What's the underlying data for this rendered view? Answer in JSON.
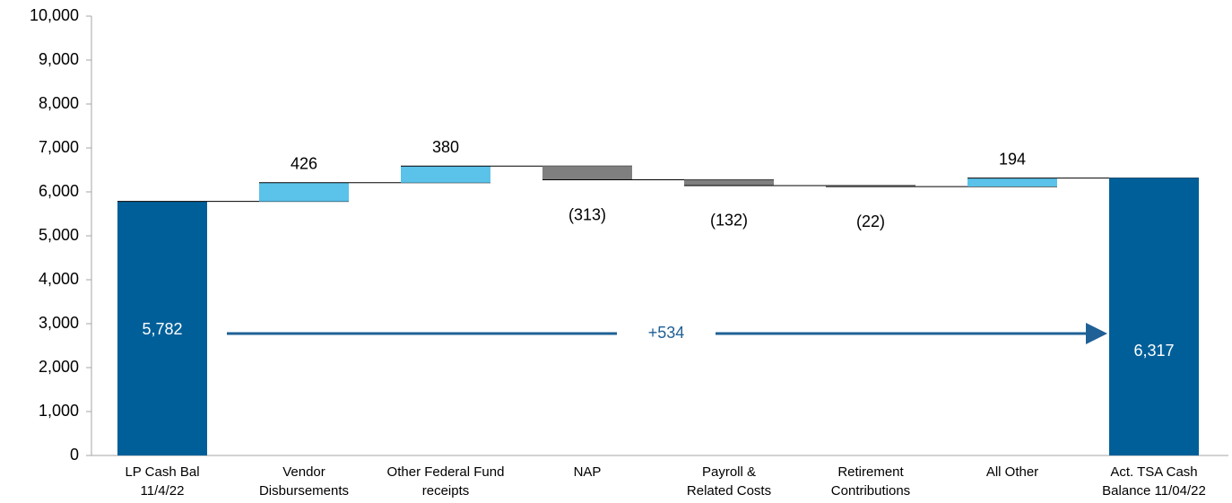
{
  "chart_data": {
    "type": "waterfall",
    "categories": [
      "LP Cash Bal\n11/4/22",
      "Vendor\nDisbursements",
      "Other Federal Fund\nreceipts",
      "NAP",
      "Payroll &\nRelated Costs",
      "Retirement\nContributions",
      "All Other",
      "Act. TSA Cash\nBalance 11/04/22"
    ],
    "values": [
      5782,
      426,
      380,
      -313,
      -132,
      -22,
      194,
      6317
    ],
    "value_labels": [
      "5,782",
      "426",
      "380",
      "(313)",
      "(132)",
      "(22)",
      "194",
      "6,317"
    ],
    "colors": {
      "total": "#005f99",
      "increase": "#5bc2ea",
      "decrease": "#7f7f7f"
    },
    "ylim": [
      0,
      10000
    ],
    "yticks": [
      0,
      {
        "value": 1000,
        "label": "1,000"
      },
      {
        "value": 2000,
        "label": "2,000"
      },
      {
        "value": 3000,
        "label": "3,000"
      },
      {
        "value": 4000,
        "label": "4,000"
      },
      {
        "value": 5000,
        "label": "5,000"
      },
      {
        "value": 6000,
        "label": "6,000"
      },
      {
        "value": 7000,
        "label": "7,000"
      },
      {
        "value": 8000,
        "label": "8,000"
      },
      {
        "value": 9000,
        "label": "9,000"
      },
      {
        "value": 10000,
        "label": "10,000"
      }
    ],
    "annotation": "+534",
    "grid": false
  }
}
